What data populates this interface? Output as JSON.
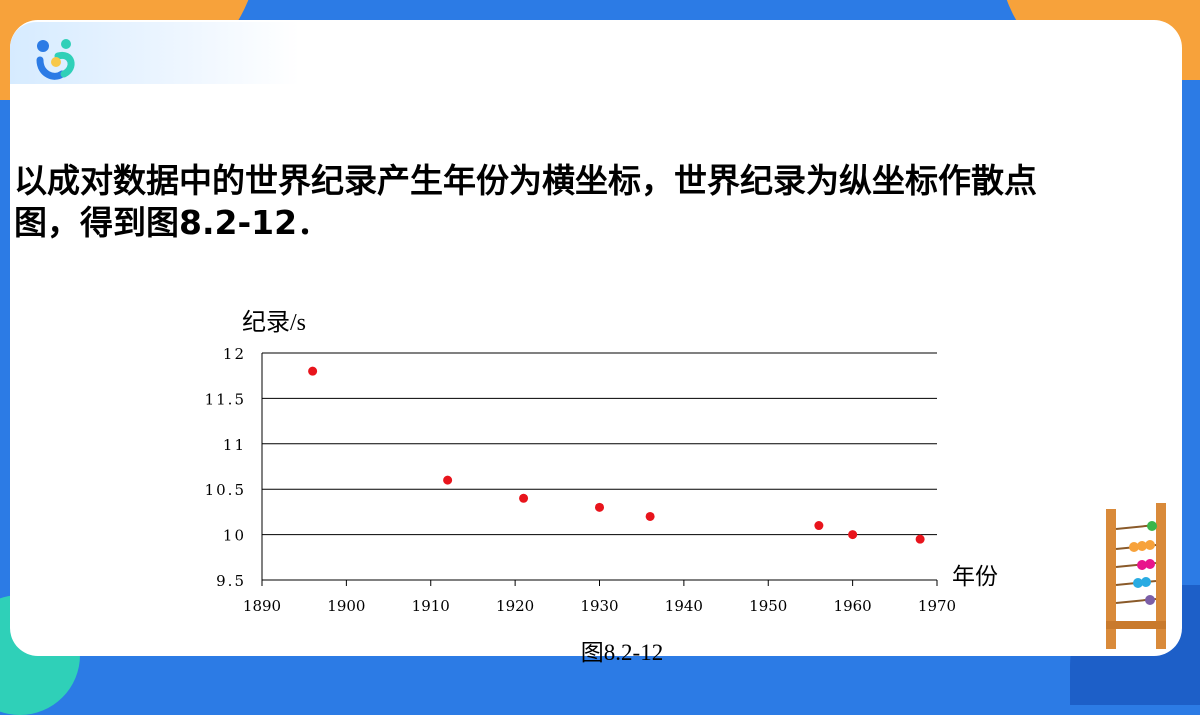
{
  "slide": {
    "title_line1": "以成对数据中的世界纪录产生年份为横坐标，世界纪录为纵坐标作散点",
    "title_line2": "图，得到图8.2-12．",
    "caption": "图8.2-12"
  },
  "colors": {
    "background": "#2c7be5",
    "accent_orange": "#f7a23b",
    "accent_teal": "#2fd0b8",
    "point": "#e8141c",
    "grid": "#000000"
  },
  "chart_data": {
    "type": "scatter",
    "title": "",
    "xlabel": "年份",
    "ylabel": "纪录/s",
    "xlim": [
      1890,
      1970
    ],
    "ylim": [
      9.5,
      12
    ],
    "xticks": [
      "1890",
      "1900",
      "1910",
      "1920",
      "1930",
      "1940",
      "1950",
      "1960",
      "1970"
    ],
    "yticks": [
      "12",
      "11.5",
      "11",
      "10.5",
      "10",
      "9.5"
    ],
    "grid": "horizontal",
    "points": [
      {
        "x": 1896,
        "y": 11.8
      },
      {
        "x": 1912,
        "y": 10.6
      },
      {
        "x": 1921,
        "y": 10.4
      },
      {
        "x": 1930,
        "y": 10.3
      },
      {
        "x": 1936,
        "y": 10.2
      },
      {
        "x": 1956,
        "y": 10.1
      },
      {
        "x": 1960,
        "y": 10.0
      },
      {
        "x": 1968,
        "y": 9.95
      }
    ]
  }
}
